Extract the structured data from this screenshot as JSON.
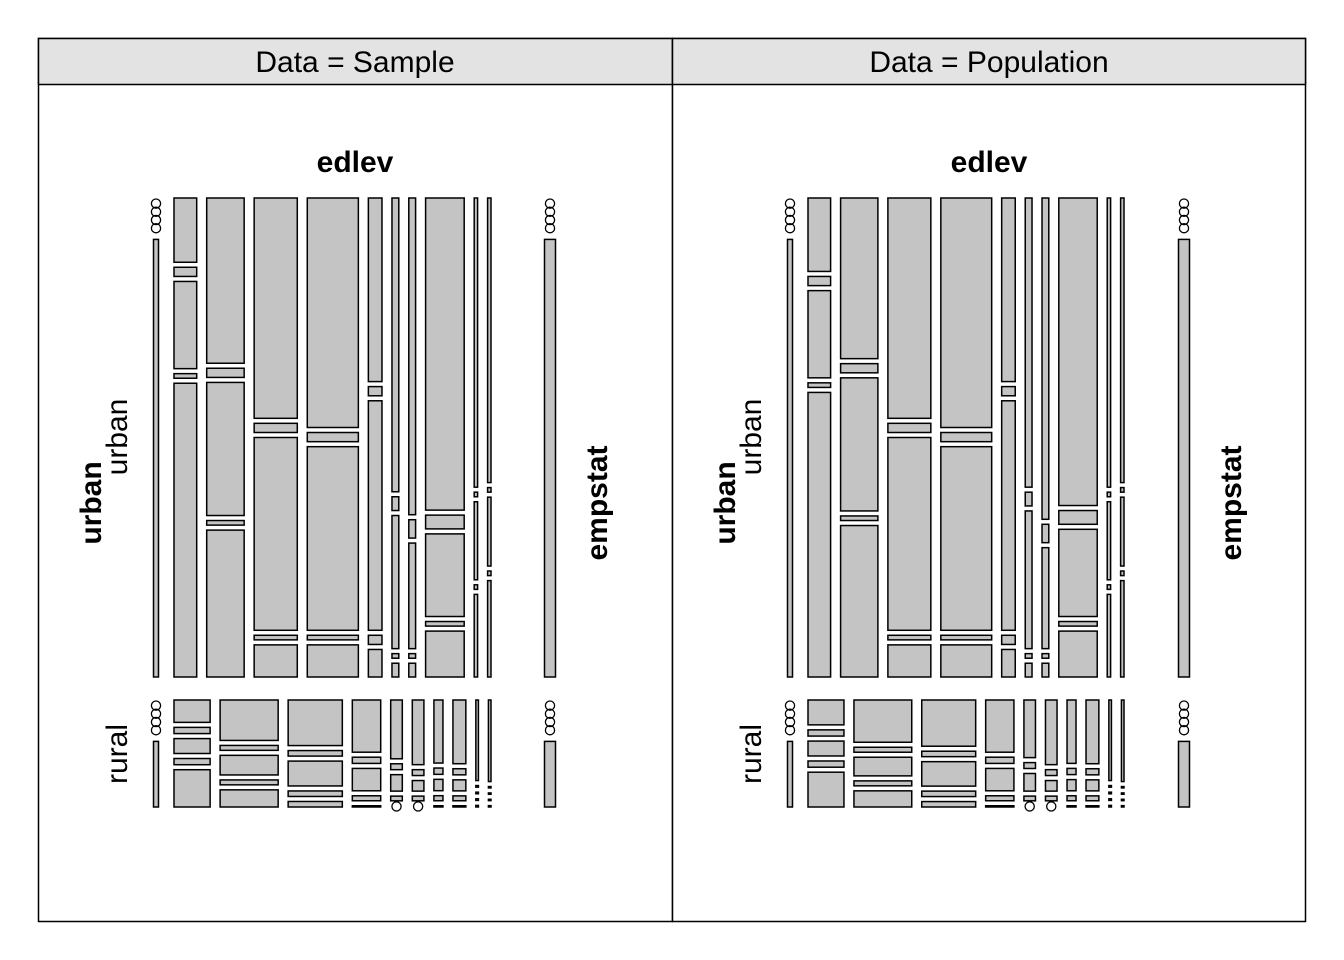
{
  "colors": {
    "tile_fill": "#c4c4c4",
    "tile_stroke": "#000000",
    "strip_fill": "#e3e3e3",
    "frame": "#000000",
    "background": "#ffffff"
  },
  "chart_data": [
    {
      "type": "mosaic",
      "panel": "Data = Sample",
      "variables": {
        "top": "edlev",
        "left": "urban",
        "right": "empstat"
      },
      "row_levels": [
        "urban",
        "rural"
      ],
      "row_shares": [
        0.8,
        0.2
      ],
      "column_labels_shown": false,
      "urban": {
        "col_widths": [
          20,
          33,
          38,
          45,
          12,
          6,
          6,
          34,
          3,
          3
        ],
        "empstat_margin": [
          0.004,
          0.004,
          0.004,
          0.004,
          0.984
        ],
        "cells": [
          [
            0.14,
            0.02,
            0.19,
            0.01,
            0.64
          ],
          [
            0.36,
            0.02,
            0.29,
            0.01,
            0.32
          ],
          [
            0.48,
            0.02,
            0.42,
            0.01,
            0.07
          ],
          [
            0.5,
            0.02,
            0.4,
            0.01,
            0.07
          ],
          [
            0.4,
            0.02,
            0.5,
            0.02,
            0.06
          ],
          [
            0.64,
            0.03,
            0.29,
            0.01,
            0.03
          ],
          [
            0.69,
            0.04,
            0.23,
            0.01,
            0.03
          ],
          [
            0.68,
            0.03,
            0.18,
            0.01,
            0.1
          ],
          [
            0.63,
            0.01,
            0.17,
            0.01,
            0.18
          ],
          [
            0.62,
            0.01,
            0.15,
            0.01,
            0.21
          ]
        ]
      },
      "rural": {
        "col_widths": [
          28,
          45,
          42,
          22,
          9,
          9,
          7,
          10,
          2,
          2
        ],
        "empstat_margin": [
          0.008,
          0.008,
          0.008,
          0.008,
          0.968
        ],
        "cells": [
          [
            0.18,
            0.05,
            0.12,
            0.05,
            0.3
          ],
          [
            0.33,
            0.04,
            0.16,
            0.04,
            0.14
          ],
          [
            0.33,
            0.04,
            0.18,
            0.04,
            0.04
          ],
          [
            0.42,
            0.05,
            0.18,
            0.04,
            0.01
          ],
          [
            0.5,
            0.05,
            0.14,
            0.04,
            0.01
          ],
          [
            0.55,
            0.05,
            0.09,
            0.04,
            0.01
          ],
          [
            0.5,
            0.05,
            0.09,
            0.04,
            0.01
          ],
          [
            0.52,
            0.05,
            0.09,
            0.04,
            0.01
          ],
          [
            0.5,
            0.01,
            0.01,
            0.01,
            0.01
          ],
          [
            0.6,
            0.01,
            0.01,
            0.01,
            0.01
          ]
        ]
      }
    },
    {
      "type": "mosaic",
      "panel": "Data = Population",
      "variables": {
        "top": "edlev",
        "left": "urban",
        "right": "empstat"
      },
      "row_levels": [
        "urban",
        "rural"
      ],
      "row_shares": [
        0.8,
        0.2
      ],
      "column_labels_shown": false,
      "urban": {
        "col_widths": [
          20,
          33,
          38,
          45,
          12,
          6,
          6,
          34,
          3,
          3
        ],
        "empstat_margin": [
          0.004,
          0.004,
          0.004,
          0.004,
          0.984
        ],
        "cells": [
          [
            0.16,
            0.02,
            0.19,
            0.01,
            0.62
          ],
          [
            0.35,
            0.02,
            0.29,
            0.01,
            0.33
          ],
          [
            0.48,
            0.02,
            0.42,
            0.01,
            0.07
          ],
          [
            0.5,
            0.02,
            0.4,
            0.01,
            0.07
          ],
          [
            0.4,
            0.02,
            0.5,
            0.02,
            0.06
          ],
          [
            0.63,
            0.03,
            0.3,
            0.01,
            0.03
          ],
          [
            0.7,
            0.04,
            0.22,
            0.01,
            0.03
          ],
          [
            0.67,
            0.03,
            0.19,
            0.01,
            0.1
          ],
          [
            0.63,
            0.01,
            0.17,
            0.01,
            0.18
          ],
          [
            0.62,
            0.01,
            0.15,
            0.01,
            0.21
          ]
        ]
      },
      "rural": {
        "col_widths": [
          28,
          45,
          42,
          22,
          9,
          9,
          7,
          10,
          2,
          2
        ],
        "empstat_margin": [
          0.008,
          0.008,
          0.008,
          0.008,
          0.968
        ],
        "cells": [
          [
            0.2,
            0.05,
            0.12,
            0.05,
            0.28
          ],
          [
            0.34,
            0.04,
            0.15,
            0.04,
            0.13
          ],
          [
            0.34,
            0.04,
            0.18,
            0.04,
            0.04
          ],
          [
            0.42,
            0.05,
            0.18,
            0.04,
            0.01
          ],
          [
            0.49,
            0.05,
            0.15,
            0.04,
            0.01
          ],
          [
            0.55,
            0.05,
            0.09,
            0.04,
            0.01
          ],
          [
            0.51,
            0.05,
            0.09,
            0.04,
            0.01
          ],
          [
            0.52,
            0.05,
            0.09,
            0.04,
            0.01
          ],
          [
            0.5,
            0.01,
            0.01,
            0.01,
            0.01
          ],
          [
            0.6,
            0.01,
            0.01,
            0.01,
            0.01
          ]
        ]
      }
    }
  ]
}
